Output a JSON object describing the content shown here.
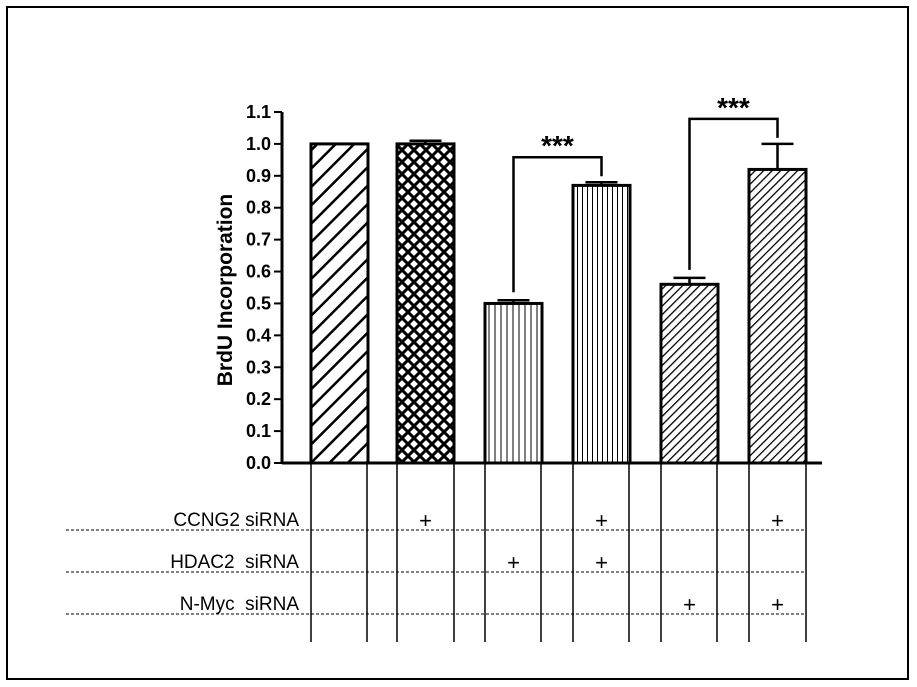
{
  "chart_data": {
    "type": "bar",
    "ylabel": "BrdU Incorporation",
    "ylim": [
      0.0,
      1.1
    ],
    "yticks": [
      "0.0",
      "0.1",
      "0.2",
      "0.3",
      "0.4",
      "0.5",
      "0.6",
      "0.7",
      "0.8",
      "0.9",
      "1.0",
      "1.1"
    ],
    "bars": [
      {
        "value": 1.0,
        "error": 0.0,
        "pattern": "diagonal-stripes"
      },
      {
        "value": 1.0,
        "error": 0.01,
        "pattern": "crosshatch"
      },
      {
        "value": 0.5,
        "error": 0.01,
        "pattern": "vertical-lines-wide"
      },
      {
        "value": 0.87,
        "error": 0.01,
        "pattern": "vertical-lines-narrow"
      },
      {
        "value": 0.56,
        "error": 0.02,
        "pattern": "dense-diagonal"
      },
      {
        "value": 0.92,
        "error": 0.08,
        "pattern": "dense-diagonal"
      }
    ],
    "significance": [
      {
        "from": 2,
        "to": 3,
        "label": "***"
      },
      {
        "from": 4,
        "to": 5,
        "label": "***"
      }
    ],
    "conditions": [
      {
        "label": "CCNG2 siRNA",
        "marks": [
          "",
          "+",
          "",
          "+",
          "",
          "+"
        ]
      },
      {
        "label": "HDAC2  siRNA",
        "marks": [
          "",
          "",
          "+",
          "+",
          "",
          ""
        ]
      },
      {
        "label": "N-Myc  siRNA",
        "marks": [
          "",
          "",
          "",
          "",
          "+",
          "+"
        ]
      }
    ]
  }
}
